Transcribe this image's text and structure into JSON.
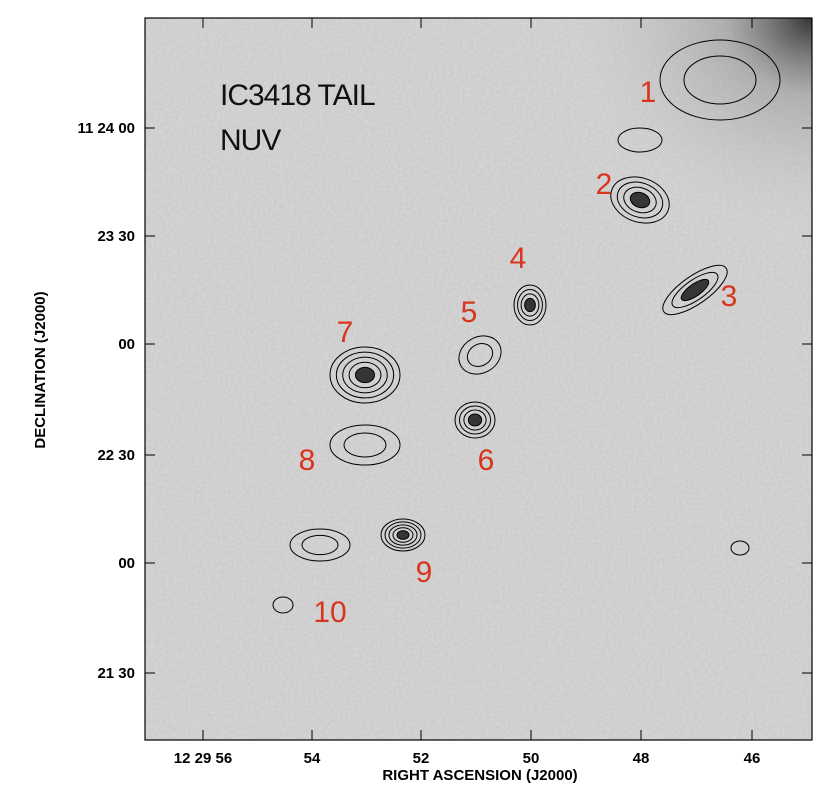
{
  "image": {
    "title_lines": [
      "IC3418 TAIL",
      "NUV"
    ],
    "x_axis": {
      "label": "RIGHT ASCENSION (J2000)",
      "ticks": [
        "12 29 56",
        "54",
        "52",
        "50",
        "48",
        "46"
      ]
    },
    "y_axis": {
      "label": "DECLINATION (J2000)",
      "ticks": [
        "11 24 00",
        "23 30",
        "00",
        "22 30",
        "00",
        "21 30"
      ]
    },
    "source_labels": [
      "1",
      "2",
      "3",
      "4",
      "5",
      "6",
      "7",
      "8",
      "9",
      "10"
    ]
  }
}
